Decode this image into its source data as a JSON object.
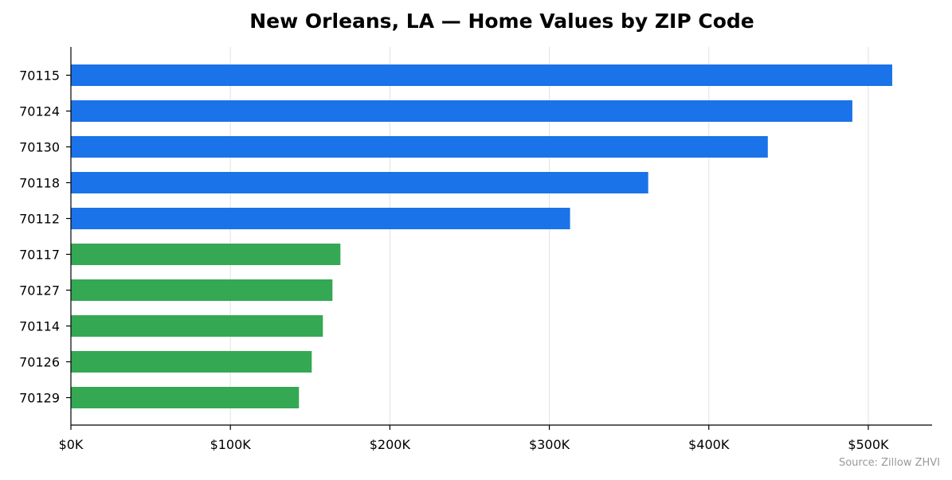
{
  "chart_data": {
    "type": "bar",
    "orientation": "horizontal",
    "title": "New Orleans, LA — Home Values by ZIP Code",
    "xlabel": "",
    "ylabel": "",
    "categories": [
      "70115",
      "70124",
      "70130",
      "70118",
      "70112",
      "70117",
      "70127",
      "70114",
      "70126",
      "70129"
    ],
    "values": [
      515000,
      490000,
      437000,
      362000,
      313000,
      169000,
      164000,
      158000,
      151000,
      143000
    ],
    "bar_colors": [
      "#1a73e8",
      "#1a73e8",
      "#1a73e8",
      "#1a73e8",
      "#1a73e8",
      "#34a853",
      "#34a853",
      "#34a853",
      "#34a853",
      "#34a853"
    ],
    "xlim": [
      0,
      540000
    ],
    "x_ticks": [
      0,
      100000,
      200000,
      300000,
      400000,
      500000
    ],
    "x_tick_labels": [
      "$0K",
      "$100K",
      "$200K",
      "$300K",
      "$400K",
      "$500K"
    ],
    "grid": "vertical",
    "legend": "none",
    "source_note": "Source: Zillow ZHVI"
  }
}
